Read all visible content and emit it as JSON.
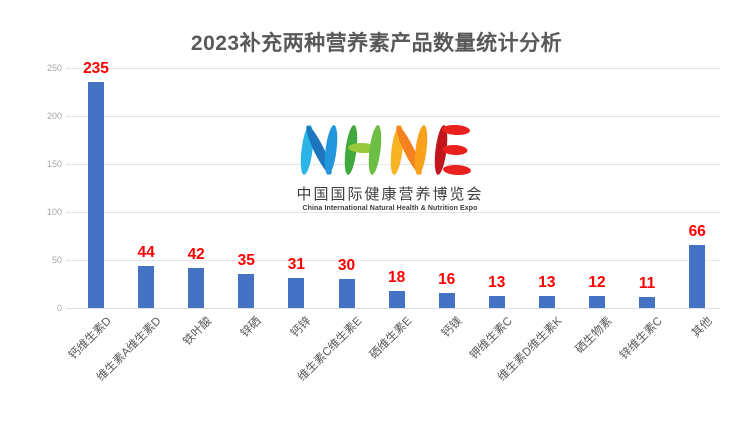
{
  "title": "2023补充两种营养素产品数量统计分析",
  "logo": {
    "text": "NHNE",
    "cn": "中国国际健康营养博览会",
    "en": "China International Natural Health & Nutrition Expo"
  },
  "chart_data": {
    "type": "bar",
    "title": "2023补充两种营养素产品数量统计分析",
    "categories": [
      "钙维生素D",
      "维生素A维生素D",
      "铁叶酸",
      "锌硒",
      "钙锌",
      "维生素C维生素E",
      "硒维生素E",
      "钙镁",
      "钾维生素C",
      "维生素D维生素K",
      "硒生物素",
      "锌维生素C",
      "其他"
    ],
    "values": [
      235,
      44,
      42,
      35,
      31,
      30,
      18,
      16,
      13,
      13,
      12,
      11,
      66
    ],
    "xlabel": "",
    "ylabel": "",
    "ylim": [
      0,
      250
    ],
    "yticks": [
      0,
      50,
      100,
      150,
      200,
      250
    ],
    "grid": true,
    "legend": "none",
    "bar_color": "#4472c4",
    "value_label_color": "#ff0000",
    "title_color": "#595959",
    "axis_label_color": "#595959",
    "ytick_color": "#a6a6a6"
  }
}
